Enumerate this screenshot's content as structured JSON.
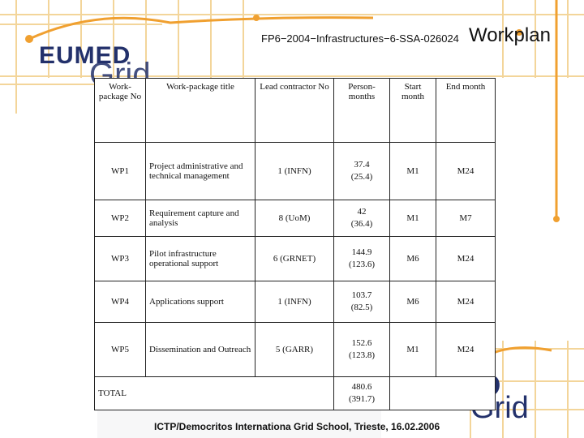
{
  "header": {
    "code": "FP6−2004−Infrastructures−6-SSA-026024",
    "title": "Workplan"
  },
  "logo": {
    "eumed": "EUMED",
    "grid": "Grid",
    "d_letter": "D",
    "grid2": "Grid"
  },
  "table": {
    "headers": {
      "wp_no": "Work-package No",
      "title": "Work-package title",
      "lead": "Lead contractor No",
      "person_months": "Person-months",
      "start": "Start month",
      "end": "End month"
    },
    "rows": [
      {
        "no": "WP1",
        "title": "Project administrative and technical management",
        "lead": "1 (INFN)",
        "pm": "37.4",
        "pm2": "(25.4)",
        "start": "M1",
        "end": "M24"
      },
      {
        "no": "WP2",
        "title": "Requirement capture and analysis",
        "lead": "8 (UoM)",
        "pm": "42",
        "pm2": "(36.4)",
        "start": "M1",
        "end": "M7"
      },
      {
        "no": "WP3",
        "title": "Pilot infrastructure operational support",
        "lead": "6 (GRNET)",
        "pm": "144.9",
        "pm2": "(123.6)",
        "start": "M6",
        "end": "M24"
      },
      {
        "no": "WP4",
        "title": "Applications support",
        "lead": "1 (INFN)",
        "pm": "103.7",
        "pm2": "(82.5)",
        "start": "M6",
        "end": "M24"
      },
      {
        "no": "WP5",
        "title": "Dissemination and Outreach",
        "lead": "5 (GARR)",
        "pm": "152.6",
        "pm2": "(123.8)",
        "start": "M1",
        "end": "M24"
      }
    ],
    "total": {
      "label": "TOTAL",
      "pm": "480.6",
      "pm2": "(391.7)"
    }
  },
  "footer": "ICTP/Democritos Internationa Grid School, Trieste, 16.02.2006",
  "colors": {
    "logo_blue": "#23316b",
    "accent_orange": "#f0a030",
    "grid_line": "#f3d59a"
  }
}
